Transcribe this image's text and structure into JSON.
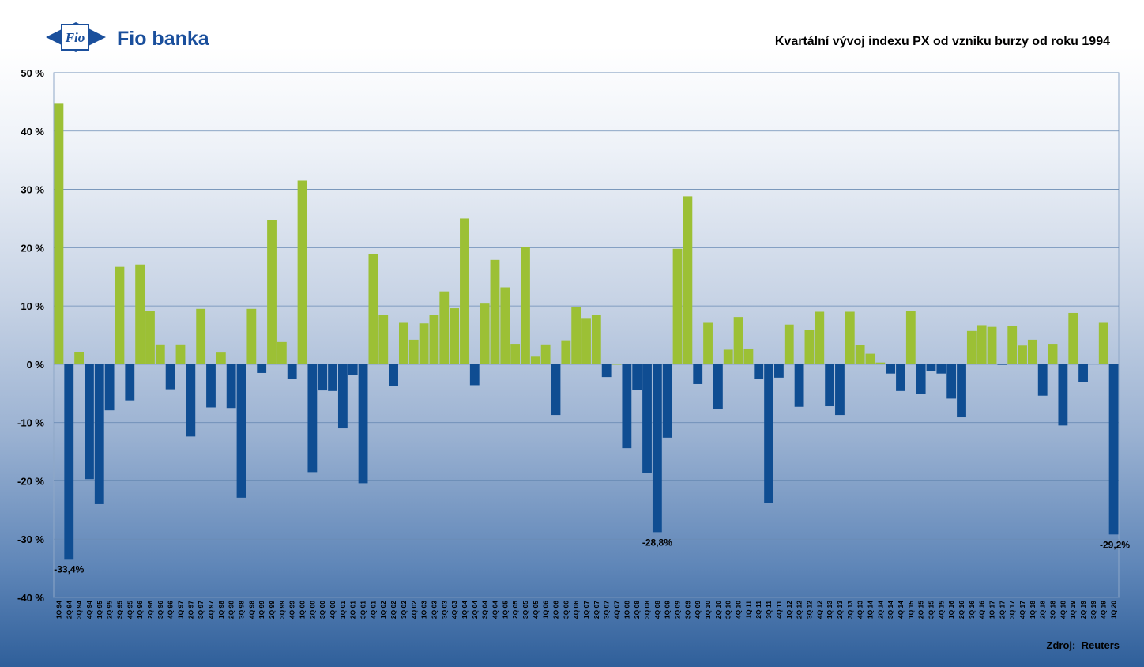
{
  "brand": {
    "logo_mark": "Fio",
    "name": "Fio banka",
    "color": "#1a4f9c"
  },
  "source": "Zdroj:  Reuters",
  "colors": {
    "positive": "#9cc035",
    "negative": "#0f4d92",
    "grid": "#6b8cb5"
  },
  "chart_data": {
    "type": "bar",
    "title": "Kvartální vývoj indexu PX od vzniku burzy od roku 1994",
    "xlabel": "",
    "ylabel": "",
    "ylim": [
      -40,
      50
    ],
    "yticks": [
      50,
      40,
      30,
      20,
      10,
      0,
      -10,
      -20,
      -30,
      -40
    ],
    "ytick_labels": [
      "50 %",
      "40 %",
      "30 %",
      "20 %",
      "10 %",
      "0 %",
      "-10 %",
      "-20 %",
      "-30 %",
      "-40 %"
    ],
    "grid": true,
    "categories": [
      "1Q 94",
      "2Q 94",
      "3Q 94",
      "4Q 94",
      "1Q 95",
      "2Q 95",
      "3Q 95",
      "4Q 95",
      "1Q 96",
      "2Q 96",
      "3Q 96",
      "4Q 96",
      "1Q 97",
      "2Q 97",
      "3Q 97",
      "4Q 97",
      "1Q 98",
      "2Q 98",
      "3Q 98",
      "4Q 98",
      "1Q 99",
      "2Q 99",
      "3Q 99",
      "4Q 99",
      "1Q 00",
      "2Q 00",
      "3Q 00",
      "4Q 00",
      "1Q 01",
      "2Q 01",
      "3Q 01",
      "4Q 01",
      "1Q 02",
      "2Q 02",
      "3Q 02",
      "4Q 02",
      "1Q 03",
      "2Q 03",
      "3Q 03",
      "4Q 03",
      "1Q 04",
      "2Q 04",
      "3Q 04",
      "4Q 04",
      "1Q 05",
      "2Q 05",
      "3Q 05",
      "4Q 05",
      "1Q 06",
      "2Q 06",
      "3Q 06",
      "4Q 06",
      "1Q 07",
      "2Q 07",
      "3Q 07",
      "4Q 07",
      "1Q 08",
      "2Q 08",
      "3Q 08",
      "4Q 08",
      "1Q 09",
      "2Q 09",
      "3Q 09",
      "4Q 09",
      "1Q 10",
      "2Q 10",
      "3Q 10",
      "4Q 10",
      "1Q 11",
      "2Q 11",
      "3Q 11",
      "4Q 11",
      "1Q 12",
      "2Q 12",
      "3Q 12",
      "4Q 12",
      "1Q 13",
      "2Q 13",
      "3Q 13",
      "4Q 13",
      "1Q 14",
      "2Q 14",
      "3Q 14",
      "4Q 14",
      "1Q 15",
      "2Q 15",
      "3Q 15",
      "4Q 15",
      "1Q 16",
      "2Q 16",
      "3Q 16",
      "4Q 16",
      "1Q 17",
      "2Q 17",
      "3Q 17",
      "4Q 17",
      "1Q 18",
      "2Q 18",
      "3Q 18",
      "4Q 18",
      "1Q 19",
      "2Q 19",
      "3Q 19",
      "4Q 19",
      "1Q 20"
    ],
    "values": [
      44.8,
      -33.4,
      2.1,
      -19.7,
      -24.0,
      -7.9,
      16.7,
      -6.2,
      17.1,
      9.2,
      3.4,
      -4.3,
      3.4,
      -12.4,
      9.5,
      -7.4,
      2.0,
      -7.5,
      -22.9,
      9.5,
      -1.5,
      24.7,
      3.8,
      -2.5,
      31.5,
      -18.5,
      -4.5,
      -4.6,
      -11.0,
      -1.9,
      -20.4,
      18.9,
      8.5,
      -3.7,
      7.1,
      4.2,
      7.0,
      8.5,
      12.5,
      9.6,
      25.0,
      -3.6,
      10.4,
      17.9,
      13.2,
      3.5,
      20.1,
      1.3,
      3.4,
      -8.7,
      4.1,
      9.8,
      7.8,
      8.5,
      -2.2,
      0.0,
      -14.4,
      -4.4,
      -18.7,
      -28.8,
      -12.6,
      19.8,
      28.8,
      -3.4,
      7.1,
      -7.7,
      2.5,
      8.1,
      2.7,
      -2.5,
      -23.8,
      -2.3,
      6.8,
      -7.3,
      5.9,
      9.0,
      -7.2,
      -8.7,
      9.0,
      3.3,
      1.8,
      0.3,
      -1.6,
      -4.6,
      9.1,
      -5.1,
      -1.1,
      -1.6,
      -5.9,
      -9.1,
      5.7,
      6.7,
      6.4,
      -0.1,
      6.5,
      3.2,
      4.2,
      -5.4,
      3.5,
      -10.5,
      8.8,
      -3.1,
      0.1,
      7.1,
      -29.2
    ],
    "annotations": [
      {
        "category": "2Q 94",
        "label": "-33,4%"
      },
      {
        "category": "4Q 08",
        "label": "-28,8%"
      },
      {
        "category": "1Q 20",
        "label": "-29,2%"
      }
    ]
  }
}
